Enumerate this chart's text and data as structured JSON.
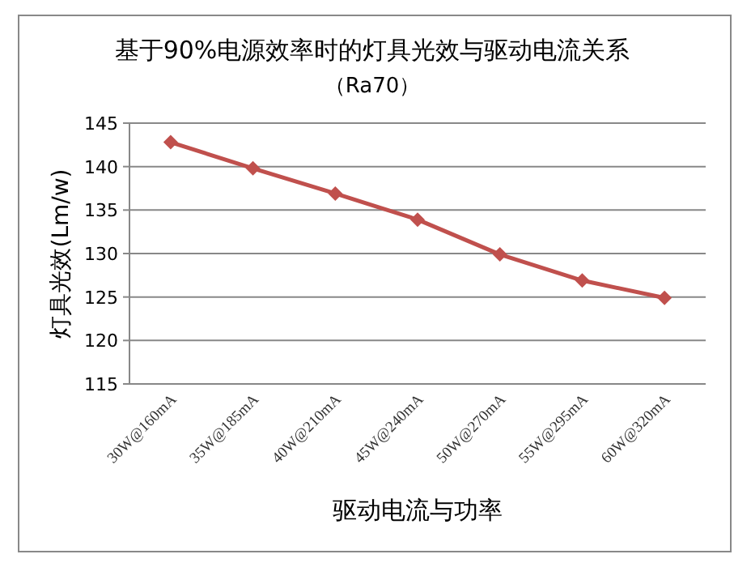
{
  "chart_data": {
    "type": "line",
    "title": "基于90%电源效率时的灯具光效与驱动电流关系",
    "subtitle": "（Ra70）",
    "xlabel": "驱动电流与功率",
    "ylabel": "灯具光效(Lm/w)",
    "categories": [
      "30W@160mA",
      "35W@185mA",
      "40W@210mA",
      "45W@240mA",
      "50W@270mA",
      "55W@295mA",
      "60W@320mA"
    ],
    "series": [
      {
        "color": "#c0504d",
        "values": [
          142.8,
          139.8,
          136.9,
          133.9,
          129.9,
          126.9,
          124.9
        ]
      }
    ],
    "ylim": [
      115,
      145
    ],
    "yticks": [
      115,
      120,
      125,
      130,
      135,
      140,
      145
    ],
    "grid": "y",
    "marker": "diamond",
    "line_style": "solid"
  }
}
